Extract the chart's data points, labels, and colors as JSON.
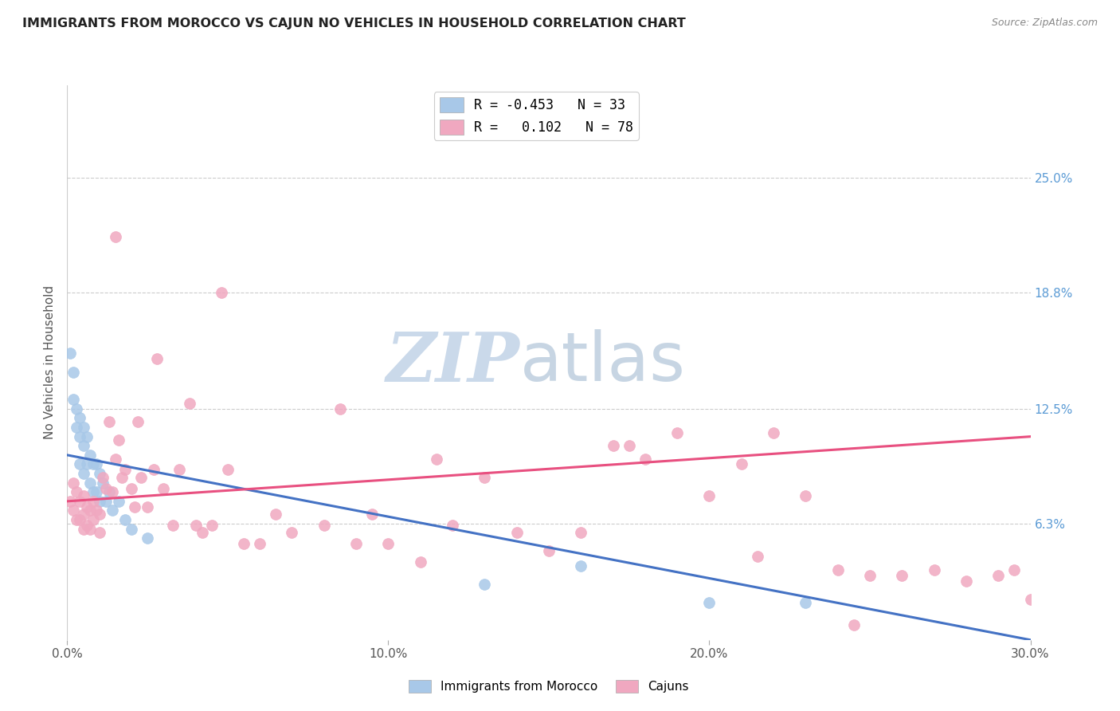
{
  "title": "IMMIGRANTS FROM MOROCCO VS CAJUN NO VEHICLES IN HOUSEHOLD CORRELATION CHART",
  "source": "Source: ZipAtlas.com",
  "ylabel": "No Vehicles in Household",
  "xlim": [
    0.0,
    0.3
  ],
  "ylim": [
    0.0,
    0.3
  ],
  "x_ticks": [
    0.0,
    0.1,
    0.2,
    0.3
  ],
  "x_tick_labels": [
    "0.0%",
    "10.0%",
    "20.0%",
    "30.0%"
  ],
  "y_ticks_right": [
    0.063,
    0.125,
    0.188,
    0.25
  ],
  "y_tick_labels_right": [
    "6.3%",
    "12.5%",
    "18.8%",
    "25.0%"
  ],
  "blue_color": "#a8c8e8",
  "pink_color": "#f0a8c0",
  "blue_line_color": "#4472c4",
  "pink_line_color": "#e85080",
  "blue_line_x0": 0.0,
  "blue_line_y0": 0.1,
  "blue_line_x1": 0.3,
  "blue_line_y1": 0.0,
  "pink_line_x0": 0.0,
  "pink_line_y0": 0.075,
  "pink_line_x1": 0.3,
  "pink_line_y1": 0.11,
  "morocco_x": [
    0.001,
    0.002,
    0.002,
    0.003,
    0.003,
    0.004,
    0.004,
    0.004,
    0.005,
    0.005,
    0.005,
    0.006,
    0.006,
    0.007,
    0.007,
    0.008,
    0.008,
    0.009,
    0.009,
    0.01,
    0.01,
    0.011,
    0.012,
    0.013,
    0.014,
    0.016,
    0.018,
    0.02,
    0.025,
    0.13,
    0.16,
    0.2,
    0.23
  ],
  "morocco_y": [
    0.155,
    0.145,
    0.13,
    0.125,
    0.115,
    0.12,
    0.11,
    0.095,
    0.115,
    0.105,
    0.09,
    0.11,
    0.095,
    0.1,
    0.085,
    0.095,
    0.08,
    0.095,
    0.08,
    0.09,
    0.075,
    0.085,
    0.075,
    0.08,
    0.07,
    0.075,
    0.065,
    0.06,
    0.055,
    0.03,
    0.04,
    0.02,
    0.02
  ],
  "cajun_x": [
    0.001,
    0.002,
    0.002,
    0.003,
    0.003,
    0.004,
    0.004,
    0.005,
    0.005,
    0.005,
    0.006,
    0.006,
    0.007,
    0.007,
    0.008,
    0.008,
    0.009,
    0.01,
    0.01,
    0.011,
    0.012,
    0.013,
    0.014,
    0.015,
    0.016,
    0.017,
    0.018,
    0.02,
    0.021,
    0.022,
    0.023,
    0.025,
    0.027,
    0.03,
    0.033,
    0.035,
    0.04,
    0.042,
    0.045,
    0.05,
    0.055,
    0.06,
    0.065,
    0.07,
    0.08,
    0.09,
    0.095,
    0.1,
    0.11,
    0.12,
    0.13,
    0.14,
    0.15,
    0.16,
    0.17,
    0.18,
    0.19,
    0.2,
    0.21,
    0.22,
    0.23,
    0.24,
    0.25,
    0.26,
    0.27,
    0.28,
    0.29,
    0.295,
    0.3,
    0.015,
    0.028,
    0.038,
    0.048,
    0.085,
    0.115,
    0.175,
    0.215,
    0.245
  ],
  "cajun_y": [
    0.075,
    0.085,
    0.07,
    0.08,
    0.065,
    0.075,
    0.065,
    0.078,
    0.068,
    0.06,
    0.072,
    0.062,
    0.07,
    0.06,
    0.075,
    0.065,
    0.07,
    0.068,
    0.058,
    0.088,
    0.082,
    0.118,
    0.08,
    0.098,
    0.108,
    0.088,
    0.092,
    0.082,
    0.072,
    0.118,
    0.088,
    0.072,
    0.092,
    0.082,
    0.062,
    0.092,
    0.062,
    0.058,
    0.062,
    0.092,
    0.052,
    0.052,
    0.068,
    0.058,
    0.062,
    0.052,
    0.068,
    0.052,
    0.042,
    0.062,
    0.088,
    0.058,
    0.048,
    0.058,
    0.105,
    0.098,
    0.112,
    0.078,
    0.095,
    0.112,
    0.078,
    0.038,
    0.035,
    0.035,
    0.038,
    0.032,
    0.035,
    0.038,
    0.022,
    0.218,
    0.152,
    0.128,
    0.188,
    0.125,
    0.098,
    0.105,
    0.045,
    0.008
  ]
}
